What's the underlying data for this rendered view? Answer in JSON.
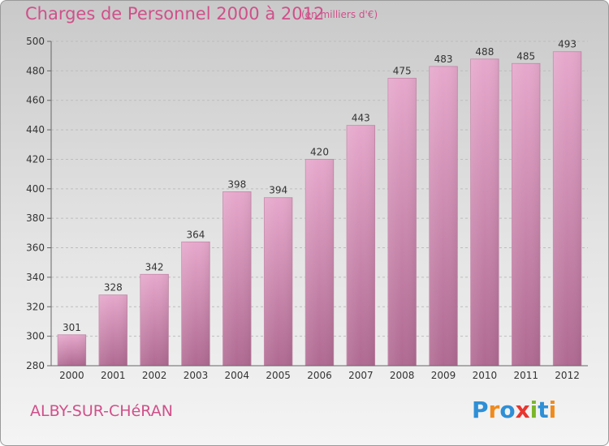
{
  "title": "Charges de Personnel 2000 à 2012",
  "unit_note": "(en milliers d'€)",
  "place": "ALBY-SUR-CHéRAN",
  "logo": {
    "text": "Proxiti",
    "letters": [
      {
        "ch": "P",
        "color": "#2e8fd6"
      },
      {
        "ch": "r",
        "color": "#f08a1c"
      },
      {
        "ch": "o",
        "color": "#2e8fd6"
      },
      {
        "ch": "x",
        "color": "#e8352e"
      },
      {
        "ch": "i",
        "color": "#7ab629"
      },
      {
        "ch": "t",
        "color": "#2e8fd6"
      },
      {
        "ch": "i",
        "color": "#f08a1c"
      }
    ]
  },
  "colors": {
    "title": "#d0508a",
    "bar_top": "#e6a8cc",
    "bar_bottom": "#b06a92"
  },
  "chart_data": {
    "type": "bar",
    "title": "Charges de Personnel 2000 à 2012",
    "subtitle": "(en milliers d'€)",
    "categories": [
      "2000",
      "2001",
      "2002",
      "2003",
      "2004",
      "2005",
      "2006",
      "2007",
      "2008",
      "2009",
      "2010",
      "2011",
      "2012"
    ],
    "values": [
      301,
      328,
      342,
      364,
      398,
      394,
      420,
      443,
      475,
      483,
      488,
      485,
      493
    ],
    "ylim": [
      280,
      500
    ],
    "yticks": [
      280,
      300,
      320,
      340,
      360,
      380,
      400,
      420,
      440,
      460,
      480,
      500
    ],
    "grid": true,
    "data_labels": true,
    "legend": "none"
  }
}
